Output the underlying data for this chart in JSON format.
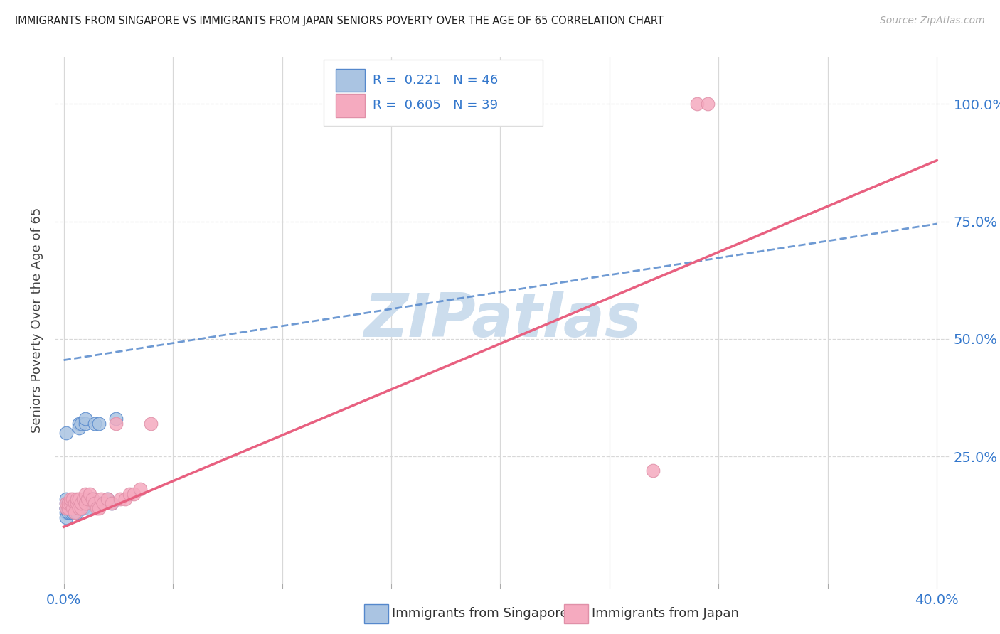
{
  "title": "IMMIGRANTS FROM SINGAPORE VS IMMIGRANTS FROM JAPAN SENIORS POVERTY OVER THE AGE OF 65 CORRELATION CHART",
  "source": "Source: ZipAtlas.com",
  "ylabel": "Seniors Poverty Over the Age of 65",
  "xlim": [
    0.0,
    0.4
  ],
  "ylim": [
    0.0,
    1.1
  ],
  "legend_R_singapore": "R =  0.221",
  "legend_N_singapore": "N = 46",
  "legend_R_japan": "R =  0.605",
  "legend_N_japan": "N = 39",
  "singapore_color": "#aac4e2",
  "japan_color": "#f5aabf",
  "singapore_line_color": "#5588cc",
  "japan_line_color": "#e86080",
  "watermark": "ZIPatlas",
  "watermark_color": "#ccdded",
  "background_color": "#ffffff",
  "grid_color": "#d8d8d8",
  "sg_line_x0": 0.0,
  "sg_line_y0": 0.455,
  "sg_line_x1": 0.4,
  "sg_line_y1": 0.745,
  "jp_line_x0": 0.0,
  "jp_line_y0": 0.1,
  "jp_line_x1": 0.4,
  "jp_line_y1": 0.88,
  "sg_points_x": [
    0.001,
    0.001,
    0.001,
    0.001,
    0.001,
    0.001,
    0.002,
    0.002,
    0.002,
    0.002,
    0.002,
    0.002,
    0.003,
    0.003,
    0.003,
    0.003,
    0.003,
    0.004,
    0.004,
    0.004,
    0.005,
    0.005,
    0.005,
    0.006,
    0.006,
    0.006,
    0.007,
    0.007,
    0.008,
    0.008,
    0.009,
    0.009,
    0.01,
    0.01,
    0.011,
    0.011,
    0.012,
    0.013,
    0.014,
    0.016,
    0.017,
    0.018,
    0.02,
    0.022,
    0.024,
    0.001
  ],
  "sg_points_y": [
    0.14,
    0.15,
    0.16,
    0.13,
    0.12,
    0.14,
    0.13,
    0.14,
    0.15,
    0.13,
    0.14,
    0.15,
    0.14,
    0.15,
    0.13,
    0.14,
    0.15,
    0.14,
    0.13,
    0.15,
    0.14,
    0.13,
    0.15,
    0.14,
    0.15,
    0.13,
    0.32,
    0.31,
    0.32,
    0.14,
    0.14,
    0.15,
    0.32,
    0.33,
    0.15,
    0.14,
    0.16,
    0.16,
    0.32,
    0.32,
    0.15,
    0.15,
    0.16,
    0.15,
    0.33,
    0.3
  ],
  "jp_points_x": [
    0.001,
    0.001,
    0.002,
    0.002,
    0.003,
    0.003,
    0.004,
    0.004,
    0.005,
    0.005,
    0.006,
    0.006,
    0.007,
    0.007,
    0.008,
    0.008,
    0.009,
    0.01,
    0.01,
    0.011,
    0.012,
    0.013,
    0.014,
    0.015,
    0.016,
    0.017,
    0.018,
    0.02,
    0.022,
    0.024,
    0.026,
    0.028,
    0.03,
    0.032,
    0.035,
    0.04,
    0.27,
    0.29,
    0.295
  ],
  "jp_points_y": [
    0.14,
    0.15,
    0.14,
    0.15,
    0.15,
    0.16,
    0.14,
    0.16,
    0.15,
    0.13,
    0.15,
    0.16,
    0.14,
    0.16,
    0.14,
    0.15,
    0.16,
    0.15,
    0.17,
    0.16,
    0.17,
    0.16,
    0.15,
    0.14,
    0.14,
    0.16,
    0.15,
    0.16,
    0.15,
    0.32,
    0.16,
    0.16,
    0.17,
    0.17,
    0.18,
    0.32,
    0.22,
    1.0,
    1.0
  ]
}
